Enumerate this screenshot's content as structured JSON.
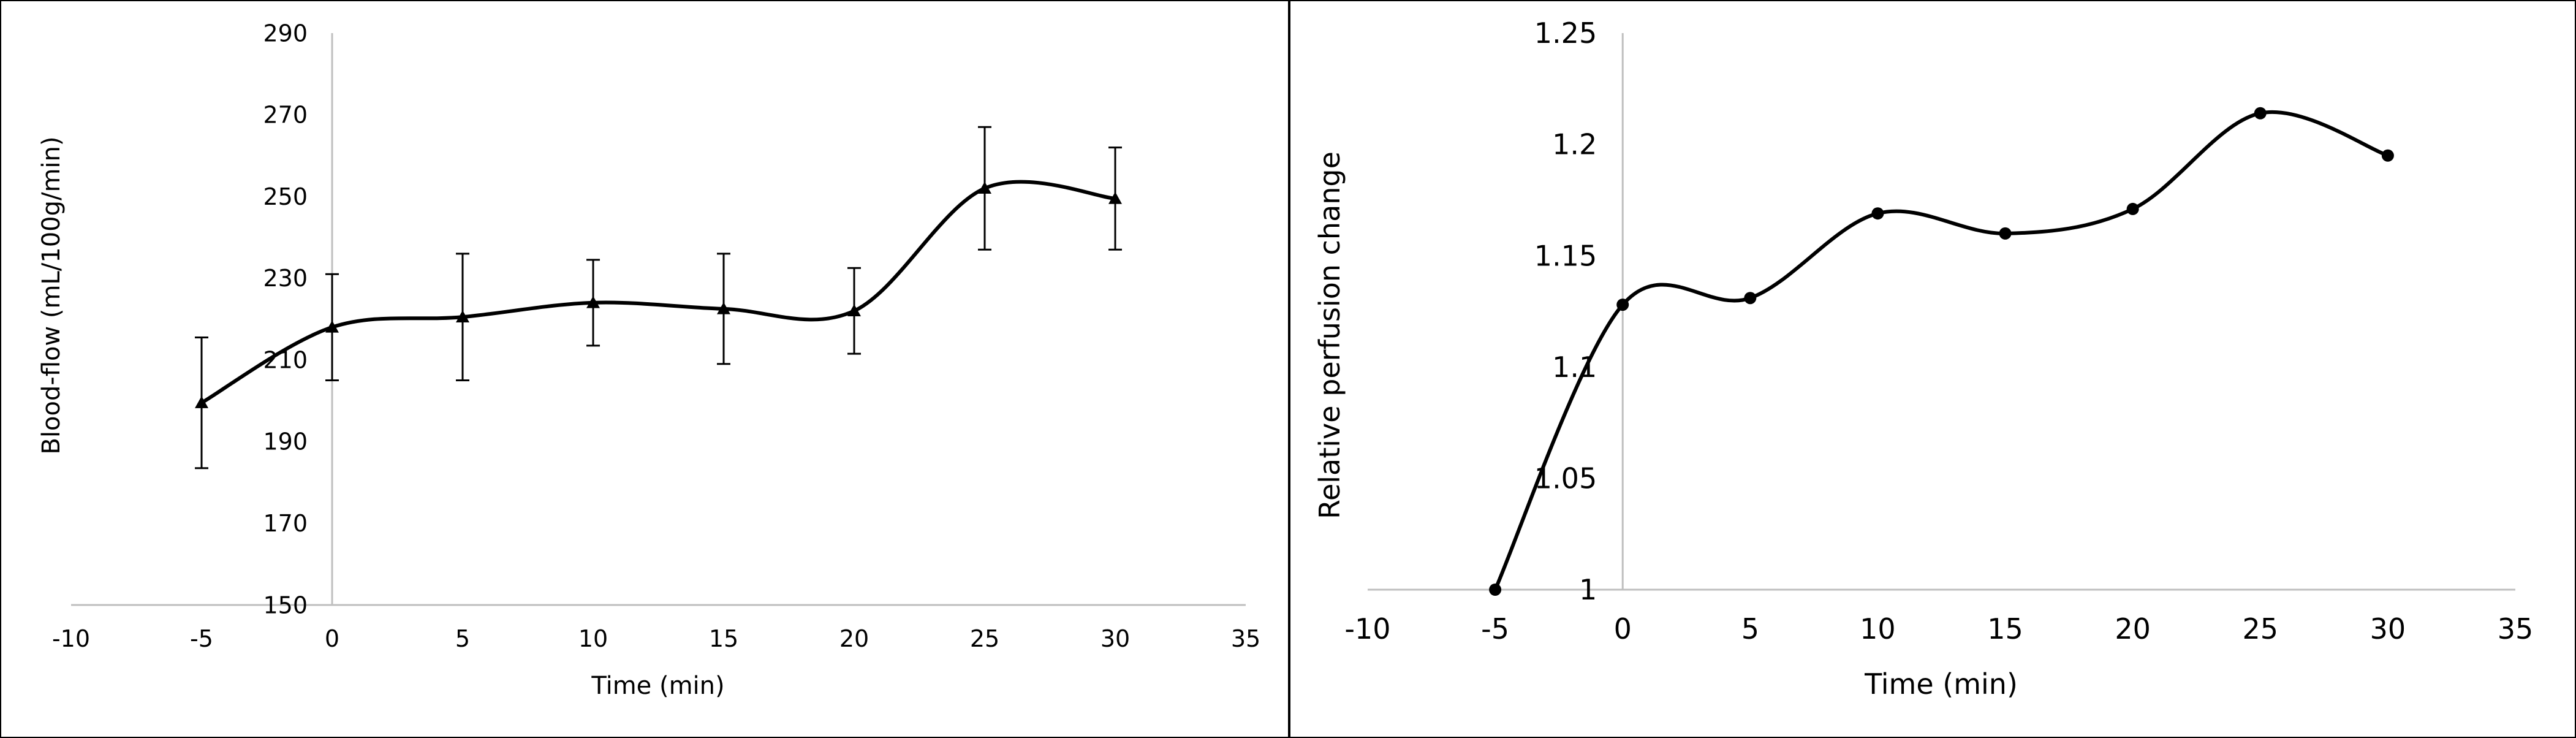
{
  "chart_data": [
    {
      "type": "line",
      "title": "",
      "xlabel": "Time (min)",
      "ylabel": "Blood-flow (mL/100g/min)",
      "xlim": [
        -10,
        35
      ],
      "ylim": [
        150,
        290
      ],
      "x_ticks": [
        -10,
        -5,
        0,
        5,
        10,
        15,
        20,
        25,
        30,
        35
      ],
      "y_ticks": [
        150,
        170,
        190,
        210,
        230,
        250,
        270,
        290
      ],
      "grid": false,
      "marker": "triangle",
      "smooth": true,
      "series": [
        {
          "x": [
            -5,
            0,
            5,
            10,
            15,
            20,
            25,
            30
          ],
          "y": [
            199.5,
            218,
            220.5,
            224,
            222.5,
            222,
            252,
            249.5
          ],
          "error": [
            16,
            13,
            15.5,
            10.5,
            13.5,
            10.5,
            15,
            12.5
          ]
        }
      ]
    },
    {
      "type": "line",
      "title": "",
      "xlabel": "Time (min)",
      "ylabel": "Relative perfusion change",
      "xlim": [
        -10,
        35
      ],
      "ylim": [
        1,
        1.25
      ],
      "x_ticks": [
        -10,
        -5,
        0,
        5,
        10,
        15,
        20,
        25,
        30,
        35
      ],
      "y_ticks": [
        1,
        1.05,
        1.1,
        1.15,
        1.2,
        1.25
      ],
      "y_tick_labels": [
        "1",
        "1.05",
        "1.1",
        "1.15",
        "1.2",
        "1.25"
      ],
      "grid": false,
      "marker": "circle",
      "smooth": true,
      "series": [
        {
          "x": [
            -5,
            0,
            5,
            10,
            15,
            20,
            25,
            30
          ],
          "y": [
            1,
            1.128,
            1.131,
            1.169,
            1.16,
            1.171,
            1.214,
            1.195
          ]
        }
      ]
    }
  ]
}
